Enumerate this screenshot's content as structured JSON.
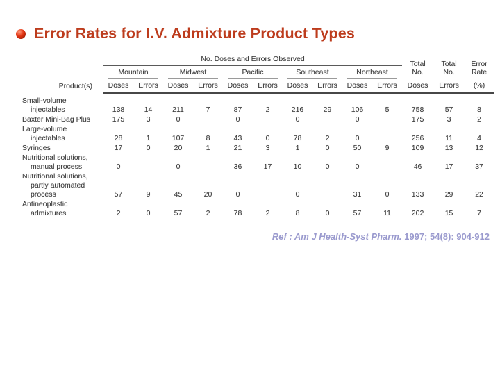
{
  "slide": {
    "title": "Error Rates for I.V. Admixture Product Types",
    "title_color": "#bd3c1d",
    "bullet_color": "#cc2200",
    "reference": {
      "source": "Ref : Am J Health-Syst Pharm.",
      "citation": " 1997; 54(8): 904-912",
      "color": "#9a9ace"
    }
  },
  "table": {
    "spanner": "No. Doses and Errors Observed",
    "product_header": "Product(s)",
    "regions": [
      "Mountain",
      "Midwest",
      "Pacific",
      "Southeast",
      "Northeast"
    ],
    "sub_headers": [
      "Doses",
      "Errors"
    ],
    "total_headers": [
      [
        "Total",
        "No.",
        "Doses"
      ],
      [
        "Total",
        "No.",
        "Errors"
      ],
      [
        "Error",
        "Rate",
        "(%)"
      ]
    ],
    "rows": [
      {
        "label_lines": [
          "Small-volume",
          "injectables"
        ],
        "values": [
          "138",
          "14",
          "211",
          "7",
          "87",
          "2",
          "216",
          "29",
          "106",
          "5",
          "758",
          "57",
          "8"
        ]
      },
      {
        "label_lines": [
          "Baxter Mini-Bag Plus"
        ],
        "values": [
          "175",
          "3",
          "0",
          "",
          "0",
          "",
          "0",
          "",
          "0",
          "",
          "175",
          "3",
          "2"
        ]
      },
      {
        "label_lines": [
          "Large-volume",
          "injectables"
        ],
        "values": [
          "28",
          "1",
          "107",
          "8",
          "43",
          "0",
          "78",
          "2",
          "0",
          "",
          "256",
          "11",
          "4"
        ]
      },
      {
        "label_lines": [
          "Syringes"
        ],
        "values": [
          "17",
          "0",
          "20",
          "1",
          "21",
          "3",
          "1",
          "0",
          "50",
          "9",
          "109",
          "13",
          "12"
        ]
      },
      {
        "label_lines": [
          "Nutritional solutions,",
          "manual process"
        ],
        "values": [
          "0",
          "",
          "0",
          "",
          "36",
          "17",
          "10",
          "0",
          "0",
          "",
          "46",
          "17",
          "37"
        ]
      },
      {
        "label_lines": [
          "Nutritional solutions,",
          "partly automated",
          "process"
        ],
        "values": [
          "57",
          "9",
          "45",
          "20",
          "0",
          "",
          "0",
          "",
          "31",
          "0",
          "133",
          "29",
          "22"
        ]
      },
      {
        "label_lines": [
          "Antineoplastic",
          "admixtures"
        ],
        "values": [
          "2",
          "0",
          "57",
          "2",
          "78",
          "2",
          "8",
          "0",
          "57",
          "11",
          "202",
          "15",
          "7"
        ]
      }
    ]
  }
}
